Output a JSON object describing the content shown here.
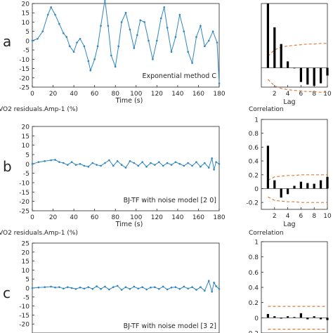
{
  "panels": [
    {
      "letter": "a",
      "residual_title": "",
      "corr_title": "",
      "annotation": "Exponential method C",
      "xlabel": "Time (s)",
      "lag_label": "Lag",
      "corr_ticks_shown": false
    },
    {
      "letter": "b",
      "residual_title": "VO2 residuals.Amp-1 (%)",
      "corr_title": "Correlation",
      "annotation": "BJ-TF with noise model [2 0]",
      "xlabel": "Time (s)",
      "lag_label": "Lag",
      "corr_ticks_shown": true
    },
    {
      "letter": "c",
      "residual_title": "VO2 residuals.Amp-1 (%)",
      "corr_title": "Correlation",
      "annotation": "BJ-TF with noise model [3 2]",
      "xlabel": "",
      "lag_label": "",
      "corr_ticks_shown": true
    }
  ],
  "colors": {
    "series": "#2e86c1",
    "bars": "#000000",
    "bounds": "#e07b39",
    "axis": "#262626"
  },
  "chart_data": [
    {
      "type": "line",
      "panel": "a",
      "xlabel": "Time (s)",
      "ylabel": "",
      "xlim": [
        0,
        180
      ],
      "ylim": [
        -25,
        20
      ],
      "xticks": [
        0,
        20,
        40,
        60,
        80,
        100,
        120,
        140,
        160,
        180
      ],
      "yticks": [
        -25,
        -20,
        -15,
        -10,
        -5,
        0,
        5,
        10,
        15,
        20
      ],
      "annotation": "Exponential method C",
      "x": [
        0,
        5,
        10,
        15,
        18,
        22,
        26,
        30,
        33,
        36,
        40,
        43,
        46,
        50,
        54,
        56,
        60,
        63,
        66,
        70,
        73,
        76,
        80,
        83,
        86,
        90,
        94,
        98,
        101,
        104,
        108,
        112,
        116,
        120,
        124,
        127,
        130,
        134,
        138,
        142,
        146,
        150,
        154,
        158,
        162,
        166,
        170,
        174,
        178,
        180
      ],
      "y": [
        0,
        1,
        5,
        14,
        18,
        14,
        9,
        4,
        2,
        -3,
        -6,
        -1,
        1,
        -3,
        -11,
        -16,
        -10,
        -3,
        8,
        22,
        8,
        -8,
        -14,
        -3,
        10,
        15,
        6,
        -4,
        3,
        11,
        10,
        0,
        -10,
        0,
        12,
        18,
        7,
        -6,
        2,
        14,
        5,
        -6,
        -12,
        2,
        8,
        -3,
        0,
        5,
        -1,
        -23
      ]
    },
    {
      "type": "bar",
      "panel": "a",
      "xlabel": "Lag",
      "ylabel": "",
      "xlim": [
        0,
        10
      ],
      "ylim": [
        -0.3,
        1
      ],
      "xticks": [
        2,
        4,
        6,
        8,
        10
      ],
      "lags": [
        1,
        2,
        3,
        4,
        5,
        6,
        7,
        8,
        9,
        10
      ],
      "values": [
        1.0,
        0.63,
        0.37,
        0.1,
        0.0,
        -0.22,
        -0.26,
        -0.28,
        -0.24,
        -0.12
      ],
      "upper_bound_x": [
        1,
        2,
        3,
        4,
        5,
        6,
        7,
        8,
        9,
        10
      ],
      "upper_bound": [
        0.18,
        0.28,
        0.32,
        0.34,
        0.35,
        0.36,
        0.37,
        0.37,
        0.38,
        0.38
      ],
      "lower_bound": [
        -0.18,
        -0.28,
        -0.32,
        -0.34,
        -0.35,
        -0.36,
        -0.37,
        -0.37,
        -0.38,
        -0.38
      ]
    },
    {
      "type": "line",
      "panel": "b",
      "title": "VO2 residuals.Amp-1 (%)",
      "xlabel": "Time (s)",
      "ylabel": "",
      "xlim": [
        0,
        180
      ],
      "ylim": [
        -25,
        20
      ],
      "xticks": [
        0,
        20,
        40,
        60,
        80,
        100,
        120,
        140,
        160,
        180
      ],
      "yticks": [
        -25,
        -20,
        -15,
        -10,
        -5,
        0,
        5,
        10,
        15,
        20
      ],
      "annotation": "BJ-TF with noise model [2 0]",
      "x": [
        0,
        6,
        12,
        18,
        22,
        26,
        30,
        34,
        38,
        42,
        46,
        50,
        54,
        58,
        62,
        66,
        70,
        74,
        78,
        82,
        86,
        90,
        94,
        98,
        102,
        106,
        110,
        114,
        118,
        122,
        126,
        130,
        134,
        138,
        142,
        146,
        150,
        154,
        158,
        162,
        166,
        170,
        173,
        175,
        177,
        180
      ],
      "y": [
        0,
        1,
        1.5,
        2,
        2.2,
        1,
        0.5,
        -0.5,
        1,
        -0.5,
        0,
        -1,
        -1.5,
        0.5,
        -0.5,
        -1,
        0.5,
        2,
        -1,
        1.5,
        -0.5,
        -2,
        1.5,
        0.5,
        -1,
        1,
        -1.5,
        0.5,
        -0.5,
        1,
        -1,
        0.5,
        -0.5,
        1,
        0,
        -1,
        0.5,
        -1,
        1,
        -1.5,
        0.5,
        -2,
        3,
        -3,
        1,
        0
      ]
    },
    {
      "type": "bar",
      "panel": "b",
      "title": "Correlation",
      "xlabel": "Lag",
      "ylabel": "",
      "xlim": [
        0,
        10
      ],
      "ylim": [
        -0.3,
        1
      ],
      "yticks": [
        -0.2,
        0,
        0.2,
        0.4,
        0.6,
        0.8,
        1
      ],
      "xticks": [
        2,
        4,
        6,
        8,
        10
      ],
      "lags": [
        1,
        2,
        3,
        4,
        5,
        6,
        7,
        8,
        9,
        10
      ],
      "values": [
        0.62,
        0.12,
        -0.13,
        -0.08,
        0.04,
        0.1,
        0.08,
        0.07,
        0.12,
        0.17
      ],
      "upper_bound_x": [
        1,
        2,
        3,
        4,
        5,
        6,
        7,
        8,
        9,
        10
      ],
      "upper_bound": [
        0.12,
        0.17,
        0.18,
        0.19,
        0.19,
        0.2,
        0.2,
        0.2,
        0.2,
        0.2
      ],
      "lower_bound": [
        -0.12,
        -0.17,
        -0.18,
        -0.19,
        -0.19,
        -0.2,
        -0.2,
        -0.2,
        -0.2,
        -0.2
      ]
    },
    {
      "type": "line",
      "panel": "c",
      "title": "VO2 residuals.Amp-1 (%)",
      "xlabel": "",
      "ylabel": "",
      "xlim": [
        0,
        180
      ],
      "ylim": [
        -25,
        25
      ],
      "yticks": [
        -20,
        -15,
        -10,
        -5,
        0,
        5,
        10,
        15,
        20,
        25
      ],
      "annotation": "BJ-TF with noise model [3 2]",
      "x": [
        0,
        6,
        12,
        18,
        22,
        26,
        30,
        34,
        38,
        42,
        46,
        50,
        54,
        58,
        62,
        66,
        70,
        74,
        78,
        82,
        86,
        90,
        94,
        98,
        102,
        106,
        110,
        114,
        118,
        122,
        126,
        130,
        134,
        138,
        142,
        146,
        150,
        154,
        158,
        162,
        166,
        170,
        173,
        175,
        177,
        180
      ],
      "y": [
        0,
        0.3,
        0.5,
        0.8,
        0.3,
        0.5,
        -0.3,
        0.5,
        0,
        -0.5,
        0.3,
        -0.3,
        0.5,
        -0.5,
        1,
        -0.5,
        0.8,
        -0.8,
        0.5,
        1.2,
        -1,
        0.5,
        -0.5,
        0.8,
        -0.3,
        0.5,
        -0.8,
        0.3,
        0.5,
        -0.5,
        0.8,
        -0.8,
        0.3,
        0.5,
        -0.5,
        0.8,
        -0.3,
        0.5,
        -1,
        0.5,
        -1.5,
        4,
        -2,
        3,
        1,
        -0.5
      ]
    },
    {
      "type": "bar",
      "panel": "c",
      "title": "Correlation",
      "xlabel": "",
      "ylabel": "",
      "xlim": [
        0,
        10
      ],
      "ylim": [
        -0.2,
        1
      ],
      "yticks": [
        -0.2,
        0,
        0.2,
        0.4,
        0.6,
        0.8,
        1
      ],
      "lags": [
        1,
        2,
        3,
        4,
        5,
        6,
        7,
        8,
        9,
        10
      ],
      "values": [
        0.05,
        0.02,
        -0.01,
        0.02,
        0.01,
        0.06,
        -0.02,
        0.02,
        -0.02,
        -0.03
      ],
      "upper_bound_x": [
        1,
        2,
        3,
        4,
        5,
        6,
        7,
        8,
        9,
        10
      ],
      "upper_bound": [
        0.15,
        0.15,
        0.15,
        0.15,
        0.15,
        0.15,
        0.15,
        0.15,
        0.15,
        0.15
      ],
      "lower_bound": [
        -0.15,
        -0.15,
        -0.15,
        -0.15,
        -0.15,
        -0.15,
        -0.15,
        -0.15,
        -0.15,
        -0.15
      ]
    }
  ]
}
